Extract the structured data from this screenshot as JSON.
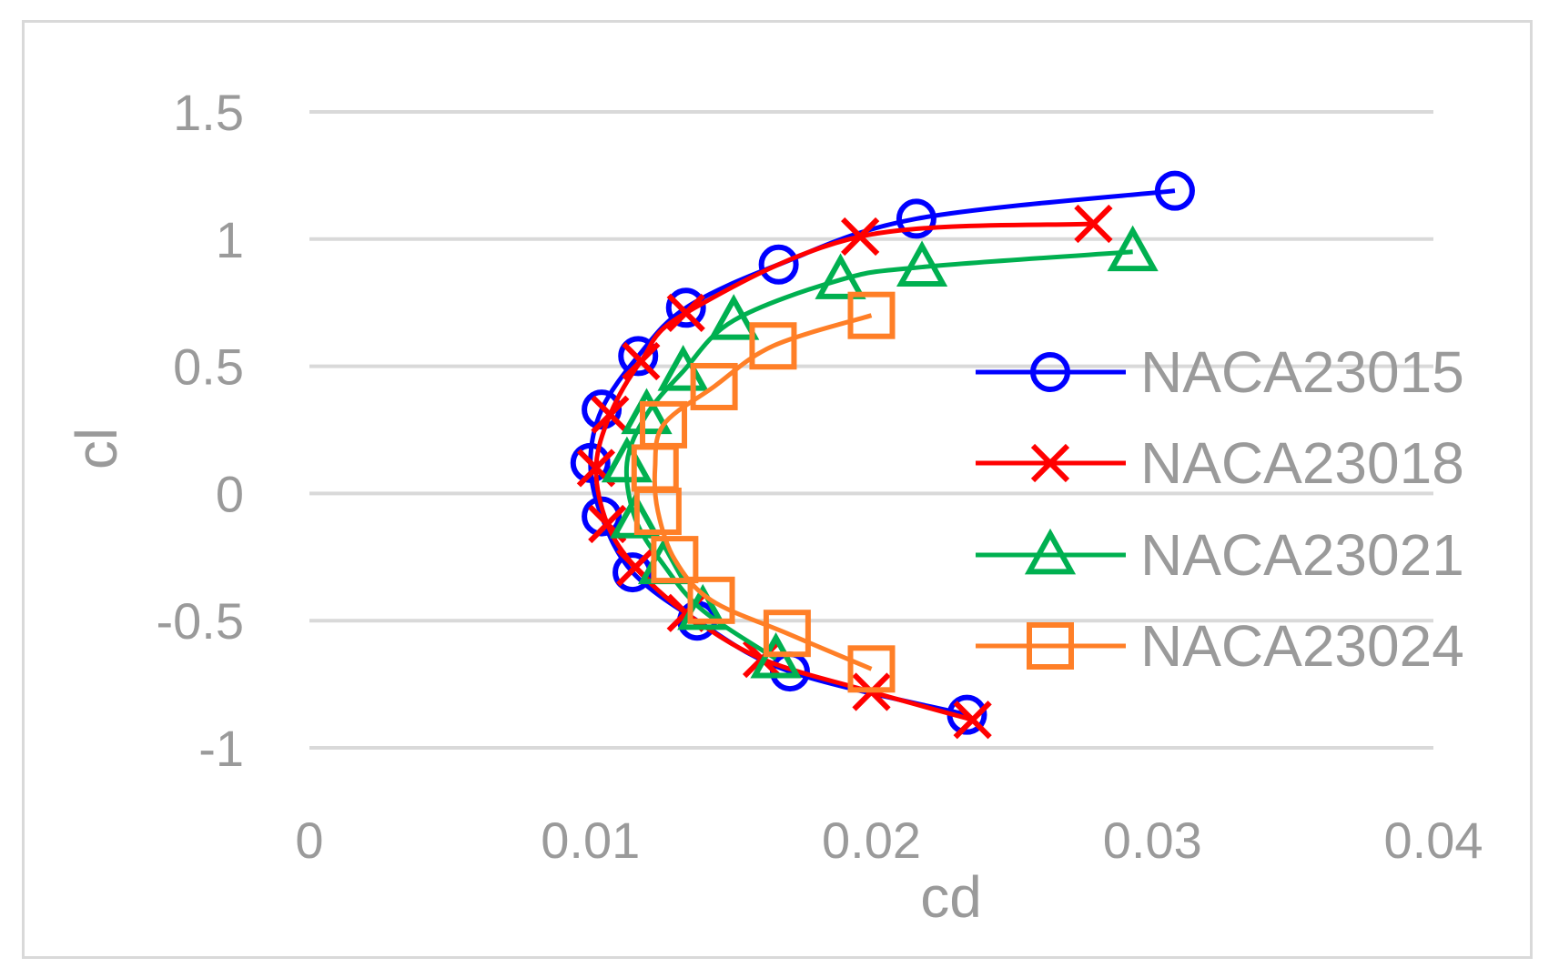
{
  "chart_data": {
    "type": "scatter",
    "title": "",
    "xlabel": "cd",
    "ylabel": "cl",
    "xlim": [
      0,
      0.04
    ],
    "ylim": [
      -1,
      1.5
    ],
    "x_ticks": [
      0,
      0.01,
      0.02,
      0.03,
      0.04
    ],
    "x_tick_labels": [
      "0",
      "0.01",
      "0.02",
      "0.03",
      "0.04"
    ],
    "y_ticks": [
      -1,
      -0.5,
      0,
      0.5,
      1,
      1.5
    ],
    "y_tick_labels": [
      "-1",
      "-0.5",
      "0",
      "0.5",
      "1",
      "1.5"
    ],
    "grid": "horizontal",
    "legend_position": "right",
    "series": [
      {
        "name": "NACA23015",
        "color": "#0000ff",
        "marker": "circle",
        "points": [
          {
            "x": 0.0234,
            "y": -0.87
          },
          {
            "x": 0.0171,
            "y": -0.7
          },
          {
            "x": 0.0138,
            "y": -0.5
          },
          {
            "x": 0.0115,
            "y": -0.31
          },
          {
            "x": 0.0104,
            "y": -0.09
          },
          {
            "x": 0.01,
            "y": 0.12
          },
          {
            "x": 0.0104,
            "y": 0.33
          },
          {
            "x": 0.0117,
            "y": 0.54
          },
          {
            "x": 0.0134,
            "y": 0.73
          },
          {
            "x": 0.0167,
            "y": 0.9
          },
          {
            "x": 0.0216,
            "y": 1.08
          },
          {
            "x": 0.0308,
            "y": 1.19
          }
        ]
      },
      {
        "name": "NACA23018",
        "color": "#ff0000",
        "marker": "x",
        "points": [
          {
            "x": 0.0236,
            "y": -0.89
          },
          {
            "x": 0.02,
            "y": -0.78
          },
          {
            "x": 0.0161,
            "y": -0.65
          },
          {
            "x": 0.0134,
            "y": -0.47
          },
          {
            "x": 0.0116,
            "y": -0.29
          },
          {
            "x": 0.0106,
            "y": -0.12
          },
          {
            "x": 0.0102,
            "y": 0.1
          },
          {
            "x": 0.0107,
            "y": 0.31
          },
          {
            "x": 0.0118,
            "y": 0.52
          },
          {
            "x": 0.0134,
            "y": 0.71
          },
          {
            "x": 0.0196,
            "y": 1.01
          },
          {
            "x": 0.0279,
            "y": 1.06
          }
        ]
      },
      {
        "name": "NACA23021",
        "color": "#00b050",
        "marker": "triangle",
        "points": [
          {
            "x": 0.0166,
            "y": -0.65
          },
          {
            "x": 0.014,
            "y": -0.46
          },
          {
            "x": 0.0126,
            "y": -0.28
          },
          {
            "x": 0.0116,
            "y": -0.1
          },
          {
            "x": 0.0113,
            "y": 0.12
          },
          {
            "x": 0.012,
            "y": 0.31
          },
          {
            "x": 0.0133,
            "y": 0.48
          },
          {
            "x": 0.0151,
            "y": 0.68
          },
          {
            "x": 0.0189,
            "y": 0.84
          },
          {
            "x": 0.0218,
            "y": 0.89
          },
          {
            "x": 0.0293,
            "y": 0.95
          }
        ]
      },
      {
        "name": "NACA23024",
        "color": "#ff7f27",
        "marker": "square",
        "points": [
          {
            "x": 0.02,
            "y": -0.69
          },
          {
            "x": 0.017,
            "y": -0.55
          },
          {
            "x": 0.0143,
            "y": -0.42
          },
          {
            "x": 0.013,
            "y": -0.26
          },
          {
            "x": 0.0124,
            "y": -0.07
          },
          {
            "x": 0.0123,
            "y": 0.1
          },
          {
            "x": 0.0126,
            "y": 0.27
          },
          {
            "x": 0.0144,
            "y": 0.42
          },
          {
            "x": 0.0165,
            "y": 0.58
          },
          {
            "x": 0.02,
            "y": 0.7
          }
        ]
      }
    ]
  }
}
